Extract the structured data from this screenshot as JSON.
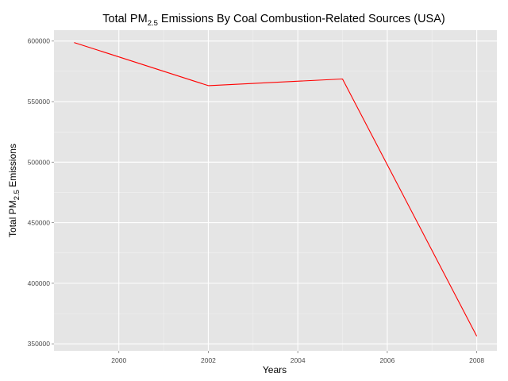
{
  "chart_data": {
    "type": "line",
    "title": {
      "prefix": "Total PM",
      "subscript": "2.5",
      "suffix": " Emissions By Coal Combustion-Related Sources (USA)"
    },
    "xlabel": "Years",
    "ylabel": {
      "prefix": "Total PM",
      "subscript": "2.5",
      "suffix": " Emissions"
    },
    "x": [
      1999,
      2002,
      2005,
      2008
    ],
    "series": [
      {
        "values": [
          598800,
          563200,
          568700,
          356300
        ],
        "color": "#ff0000"
      }
    ],
    "xlim": [
      1998.55,
      2008.45
    ],
    "ylim": [
      344200,
      609000
    ],
    "x_ticks": [
      2000,
      2002,
      2004,
      2006,
      2008
    ],
    "x_tick_labels": [
      "2000",
      "2002",
      "2004",
      "2006",
      "2008"
    ],
    "y_ticks": [
      350000,
      400000,
      450000,
      500000,
      550000,
      600000
    ],
    "y_tick_labels": [
      "350000",
      "400000",
      "450000",
      "500000",
      "550000",
      "600000"
    ],
    "grid": true,
    "panel_background": "#e5e5e5",
    "grid_major_color": "#ffffff",
    "grid_minor_color": "#f2f2f2"
  }
}
